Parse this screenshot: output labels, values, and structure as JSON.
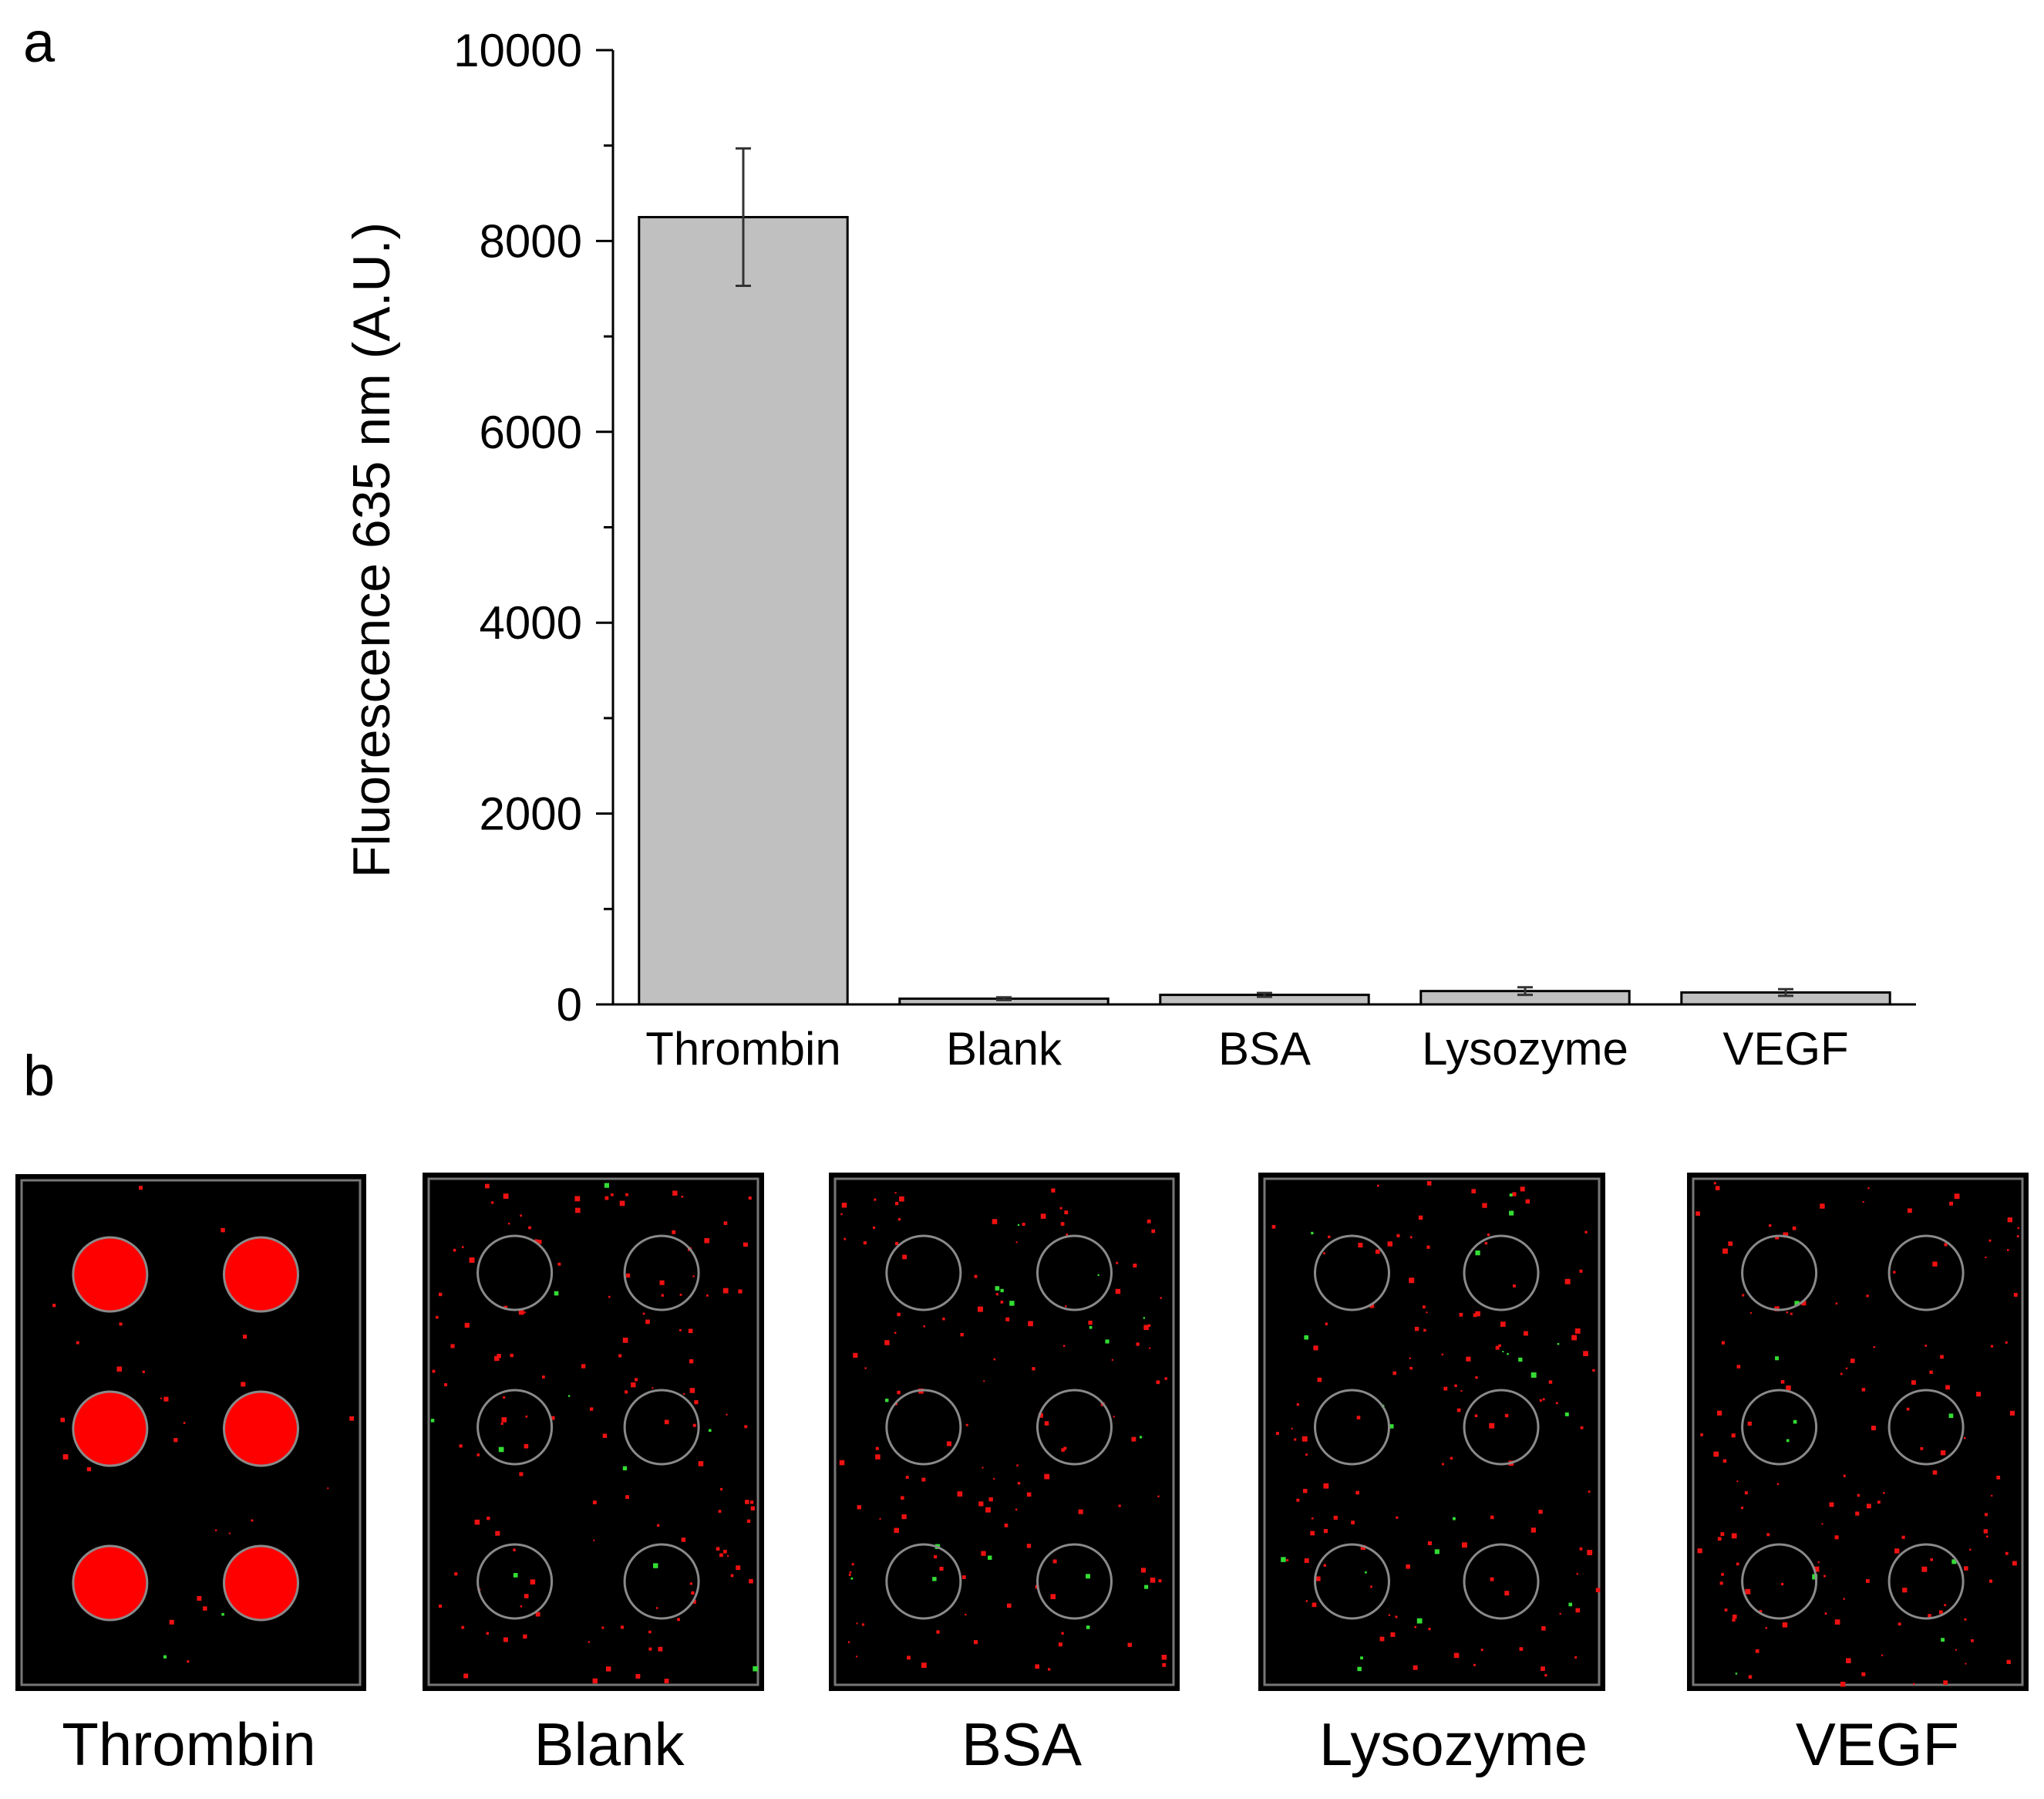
{
  "panel_labels": {
    "a": "a",
    "b": "b"
  },
  "chart_data": {
    "type": "bar",
    "title": "",
    "xlabel": "",
    "ylabel": "Fluorescence 635 nm (A.U.)",
    "ylim": [
      0,
      10000
    ],
    "yticks": [
      0,
      2000,
      4000,
      6000,
      8000,
      10000
    ],
    "categories": [
      "Thrombin",
      "Blank",
      "BSA",
      "Lysozyme",
      "VEGF"
    ],
    "values": [
      8250,
      60,
      100,
      140,
      125
    ],
    "errors": [
      720,
      15,
      20,
      40,
      35
    ],
    "bar_color": "#c0c0c0"
  },
  "images": {
    "labels": [
      "Thrombin",
      "Blank",
      "BSA",
      "Lysozyme",
      "VEGF"
    ],
    "spot_fill_levels": [
      1.0,
      0.0,
      0.0,
      0.0,
      0.0
    ],
    "spot_color": "#ff0000",
    "background_color": "#000000"
  }
}
